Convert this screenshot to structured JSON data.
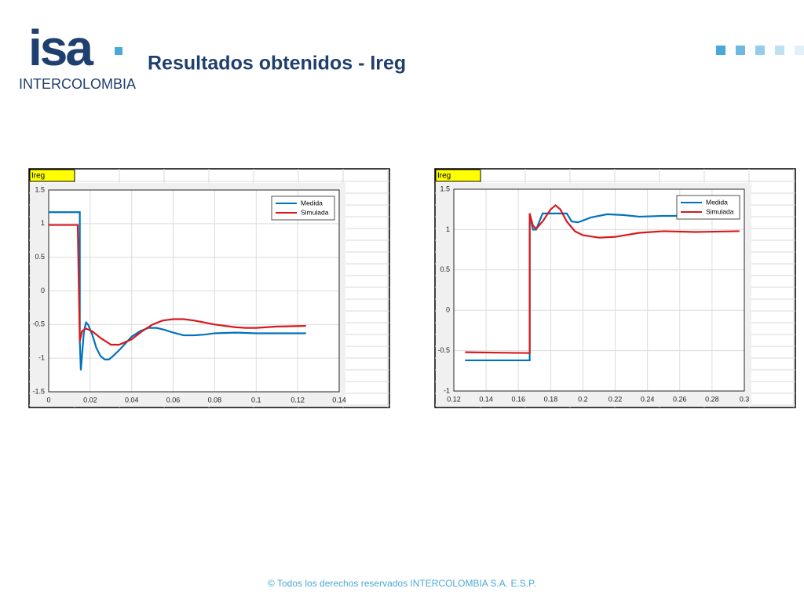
{
  "header": {
    "logo_mark": "isa",
    "logo_text": "INTERCOLOMBIA",
    "title": "Resultados obtenidos - Ireg"
  },
  "footer": "© Todos los derechos reservados INTERCOLOMBIA S.A. E.S.P.",
  "chart_data": [
    {
      "type": "line",
      "label": "Ireg",
      "grid": true,
      "legend": "top-right",
      "xlim": [
        0,
        0.14
      ],
      "xticks": [
        0,
        0.02,
        0.04,
        0.06,
        0.08,
        0.1,
        0.12,
        0.14
      ],
      "ylim": [
        -1.5,
        1.5
      ],
      "yticks": [
        -1.5,
        -1,
        -0.5,
        0,
        0.5,
        1,
        1.5
      ],
      "series": [
        {
          "name": "Medida",
          "color": "#0072bd",
          "x": [
            0,
            0.015,
            0.015,
            0.0155,
            0.017,
            0.018,
            0.019,
            0.021,
            0.023,
            0.025,
            0.027,
            0.029,
            0.031,
            0.034,
            0.037,
            0.04,
            0.044,
            0.048,
            0.052,
            0.056,
            0.06,
            0.065,
            0.07,
            0.075,
            0.08,
            0.09,
            0.1,
            0.11,
            0.124
          ],
          "values": [
            1.17,
            1.17,
            -0.75,
            -1.18,
            -0.6,
            -0.47,
            -0.5,
            -0.65,
            -0.85,
            -0.97,
            -1.02,
            -1.02,
            -0.97,
            -0.88,
            -0.78,
            -0.68,
            -0.6,
            -0.55,
            -0.55,
            -0.58,
            -0.62,
            -0.66,
            -0.66,
            -0.65,
            -0.63,
            -0.62,
            -0.63,
            -0.63,
            -0.63
          ]
        },
        {
          "name": "Simulada",
          "color": "#d7191c",
          "x": [
            0,
            0.014,
            0.015,
            0.016,
            0.018,
            0.021,
            0.025,
            0.03,
            0.034,
            0.04,
            0.045,
            0.05,
            0.055,
            0.06,
            0.065,
            0.07,
            0.08,
            0.09,
            0.095,
            0.1,
            0.11,
            0.124
          ],
          "values": [
            0.98,
            0.98,
            -0.75,
            -0.6,
            -0.56,
            -0.6,
            -0.7,
            -0.8,
            -0.8,
            -0.72,
            -0.6,
            -0.5,
            -0.44,
            -0.42,
            -0.42,
            -0.44,
            -0.5,
            -0.54,
            -0.55,
            -0.55,
            -0.53,
            -0.52
          ]
        }
      ]
    },
    {
      "type": "line",
      "label": "Ireg",
      "grid": true,
      "legend": "top-right",
      "xlim": [
        0.12,
        0.3
      ],
      "xticks": [
        0.12,
        0.14,
        0.16,
        0.18,
        0.2,
        0.22,
        0.24,
        0.26,
        0.28,
        0.3
      ],
      "ylim": [
        -1,
        1.5
      ],
      "yticks": [
        -1,
        -0.5,
        0,
        0.5,
        1,
        1.5
      ],
      "series": [
        {
          "name": "Medida",
          "color": "#0072bd",
          "x": [
            0.127,
            0.167,
            0.167,
            0.169,
            0.171,
            0.175,
            0.19,
            0.193,
            0.197,
            0.205,
            0.215,
            0.225,
            0.235,
            0.25,
            0.275,
            0.297
          ],
          "values": [
            -0.62,
            -0.62,
            1.2,
            1.0,
            1.0,
            1.2,
            1.2,
            1.1,
            1.09,
            1.15,
            1.19,
            1.18,
            1.16,
            1.17,
            1.17,
            1.16
          ]
        },
        {
          "name": "Simulada",
          "color": "#d7191c",
          "x": [
            0.127,
            0.167,
            0.167,
            0.169,
            0.171,
            0.175,
            0.18,
            0.183,
            0.186,
            0.19,
            0.195,
            0.2,
            0.21,
            0.22,
            0.235,
            0.25,
            0.27,
            0.297
          ],
          "values": [
            -0.52,
            -0.53,
            1.2,
            1.05,
            1.01,
            1.1,
            1.25,
            1.3,
            1.25,
            1.1,
            0.98,
            0.93,
            0.9,
            0.91,
            0.96,
            0.98,
            0.97,
            0.98
          ]
        }
      ]
    }
  ]
}
